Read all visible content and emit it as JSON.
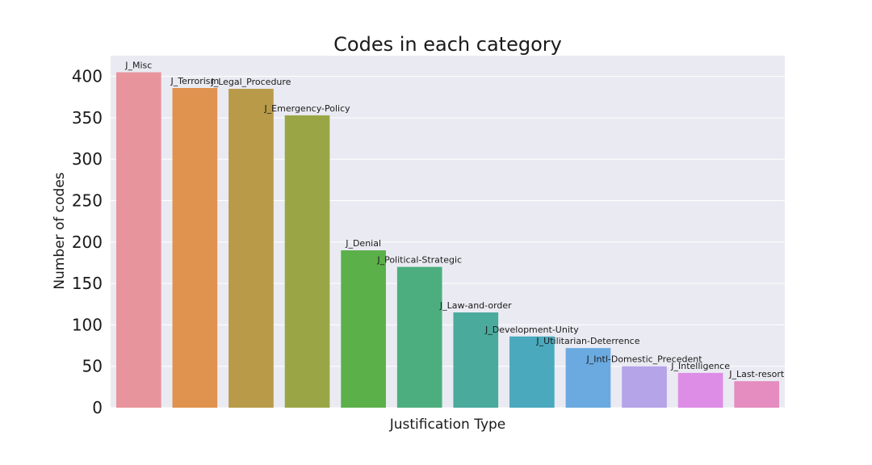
{
  "chart_data": {
    "type": "bar",
    "title": "Codes in each category",
    "xlabel": "Justification Type",
    "ylabel": "Number of codes",
    "ylim": [
      0,
      425
    ],
    "yticks": [
      0,
      50,
      100,
      150,
      200,
      250,
      300,
      350,
      400
    ],
    "grid": true,
    "categories": [
      "J_Misc",
      "J_Terrorism",
      "J_Legal_Procedure",
      "J_Emergency-Policy",
      "J_Denial",
      "J_Political-Strategic",
      "J_Law-and-order",
      "J_Development-Unity",
      "J_Utilitarian-Deterrence",
      "J_Intl-Domestic_Precedent",
      "J_Intelligence",
      "J_Last-resort"
    ],
    "values": [
      405,
      386,
      385,
      353,
      190,
      170,
      115,
      86,
      72,
      50,
      42,
      32
    ],
    "colors": [
      "#e8949c",
      "#e0924f",
      "#b89a48",
      "#9aa645",
      "#5bb04a",
      "#4cae7e",
      "#4aaa9c",
      "#4aa9bd",
      "#6aaae0",
      "#b5a4e8",
      "#de8de6",
      "#e58cc0"
    ],
    "background": "#eaeaf2",
    "gridcolor": "#ffffff"
  }
}
